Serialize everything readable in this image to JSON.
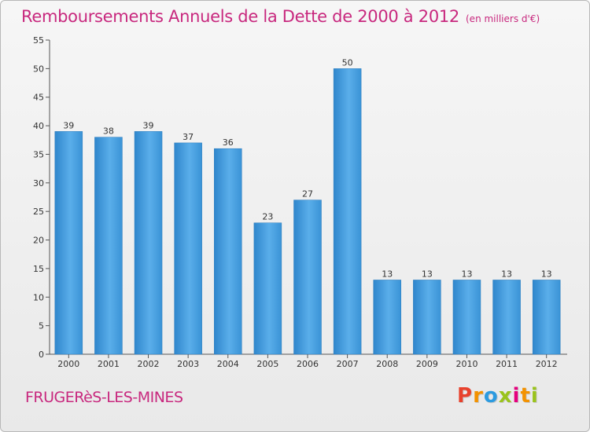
{
  "chart_data": {
    "type": "bar",
    "title": "Remboursements Annuels de la Dette de 2000 à 2012",
    "subtitle": "(en milliers d'€)",
    "categories": [
      "2000",
      "2001",
      "2002",
      "2003",
      "2004",
      "2005",
      "2006",
      "2007",
      "2008",
      "2009",
      "2010",
      "2011",
      "2012"
    ],
    "values": [
      39,
      38,
      39,
      37,
      36,
      23,
      27,
      50,
      13,
      13,
      13,
      13,
      13
    ],
    "ylim": [
      0,
      55
    ],
    "yticks": [
      0,
      5,
      10,
      15,
      20,
      25,
      30,
      35,
      40,
      45,
      50,
      55
    ],
    "xlabel": "",
    "ylabel": "",
    "grid": false,
    "bar_color": "#3f97d8"
  },
  "footer": {
    "commune": "FRUGERèS-LES-MINES",
    "brand_letters": [
      "P",
      "r",
      "o",
      "x",
      "i",
      "t",
      "i"
    ],
    "brand_colors": [
      "#e8412c",
      "#f39200",
      "#2c9be0",
      "#9ac31c",
      "#e5007d",
      "#f39200",
      "#9ac31c"
    ]
  }
}
